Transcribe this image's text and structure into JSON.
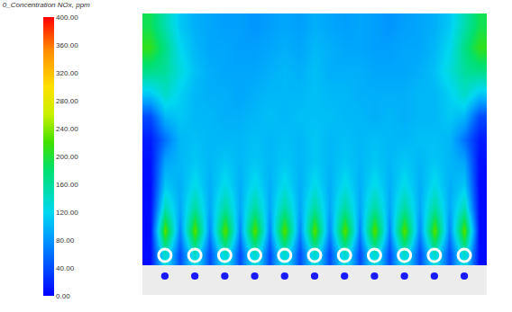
{
  "chart_data": {
    "type": "heatmap",
    "title": "0_Concentration NOx, ppm",
    "tick_labels": false,
    "cells": [
      [
        190,
        150,
        110,
        95,
        90,
        85,
        85,
        80,
        85,
        90,
        85,
        95,
        90,
        85,
        90,
        85,
        80,
        85,
        90,
        95,
        110,
        150,
        190
      ],
      [
        210,
        170,
        120,
        100,
        90,
        90,
        85,
        85,
        90,
        95,
        90,
        100,
        95,
        90,
        90,
        85,
        85,
        90,
        90,
        100,
        120,
        170,
        210
      ],
      [
        170,
        160,
        130,
        105,
        95,
        90,
        90,
        90,
        95,
        100,
        95,
        105,
        95,
        95,
        95,
        90,
        90,
        90,
        95,
        105,
        130,
        160,
        170
      ],
      [
        110,
        140,
        115,
        100,
        95,
        95,
        90,
        95,
        100,
        100,
        100,
        105,
        100,
        100,
        95,
        95,
        95,
        95,
        100,
        100,
        115,
        140,
        110
      ],
      [
        40,
        100,
        110,
        100,
        100,
        95,
        95,
        100,
        105,
        100,
        105,
        105,
        105,
        100,
        100,
        95,
        100,
        95,
        100,
        100,
        110,
        100,
        40
      ],
      [
        15,
        60,
        100,
        105,
        100,
        100,
        100,
        105,
        100,
        105,
        100,
        110,
        100,
        105,
        100,
        105,
        100,
        100,
        105,
        105,
        100,
        60,
        15
      ],
      [
        8,
        90,
        100,
        110,
        100,
        110,
        100,
        110,
        100,
        110,
        100,
        110,
        100,
        110,
        100,
        110,
        100,
        110,
        100,
        110,
        100,
        90,
        8
      ],
      [
        5,
        110,
        95,
        125,
        95,
        125,
        95,
        125,
        95,
        125,
        95,
        125,
        95,
        125,
        95,
        125,
        95,
        125,
        95,
        125,
        95,
        110,
        5
      ],
      [
        5,
        150,
        90,
        160,
        90,
        160,
        90,
        160,
        90,
        160,
        90,
        160,
        90,
        160,
        90,
        160,
        90,
        160,
        90,
        160,
        90,
        150,
        5
      ],
      [
        5,
        230,
        70,
        230,
        70,
        230,
        70,
        230,
        70,
        230,
        70,
        230,
        70,
        230,
        70,
        230,
        70,
        230,
        70,
        230,
        70,
        230,
        5
      ],
      [
        5,
        140,
        40,
        140,
        40,
        140,
        40,
        140,
        40,
        140,
        40,
        140,
        40,
        140,
        40,
        140,
        40,
        140,
        40,
        140,
        40,
        140,
        5
      ]
    ],
    "colorbar_range": [
      0,
      400
    ],
    "colorbar_ticks": [
      {
        "value": 0,
        "label": "0.00"
      },
      {
        "value": 40,
        "label": "40.00"
      },
      {
        "value": 80,
        "label": "80.00"
      },
      {
        "value": 120,
        "label": "120.00"
      },
      {
        "value": 160,
        "label": "160.00"
      },
      {
        "value": 200,
        "label": "200.00"
      },
      {
        "value": 240,
        "label": "240.00"
      },
      {
        "value": 280,
        "label": "280.00"
      },
      {
        "value": 320,
        "label": "320.00"
      },
      {
        "value": 360,
        "label": "360.00"
      },
      {
        "value": 400,
        "label": "400.00"
      }
    ]
  }
}
